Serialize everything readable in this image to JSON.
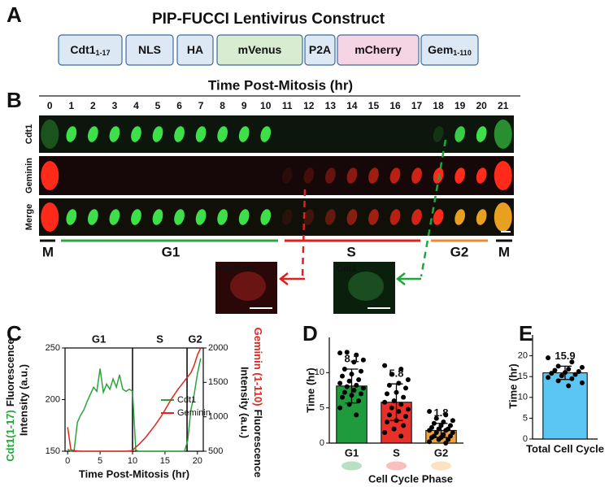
{
  "panel_labels": [
    "A",
    "B",
    "C",
    "D",
    "E"
  ],
  "construct": {
    "title": "PIP-FUCCI Lentivirus Construct",
    "segments": [
      {
        "name": "Cdt1",
        "sub": "1-17",
        "color": "#dde8f5"
      },
      {
        "name": "NLS",
        "color": "#dde8f5"
      },
      {
        "name": "HA",
        "color": "#dde8f5"
      },
      {
        "name": "mVenus",
        "color": "#d7ecd0"
      },
      {
        "name": "P2A",
        "color": "#dde8f5"
      },
      {
        "name": "mCherry",
        "color": "#f5d4e4"
      },
      {
        "name": "Gem",
        "sub": "1-110",
        "color": "#dde8f5"
      }
    ]
  },
  "timelapse": {
    "title": "Time Post-Mitosis (hr)",
    "times": [
      0,
      1,
      2,
      3,
      4,
      5,
      6,
      7,
      8,
      9,
      10,
      11,
      12,
      13,
      14,
      15,
      16,
      17,
      18,
      19,
      20,
      21
    ],
    "rows": [
      {
        "name": "Cdt1",
        "color": "#1fa83a"
      },
      {
        "name": "Geminin",
        "color": "#e0201e"
      },
      {
        "name": "Merge",
        "color": "#111111"
      }
    ],
    "phases": [
      {
        "name": "M",
        "color": "#111111"
      },
      {
        "name": "G1",
        "color": "#27a844"
      },
      {
        "name": "S",
        "color": "#e0201e"
      },
      {
        "name": "G2",
        "color": "#f08a30"
      },
      {
        "name": "M",
        "color": "#111111"
      }
    ],
    "insets": [
      {
        "name": "Geminin",
        "color": "#e0201e"
      },
      {
        "name": "Cdt1",
        "color": "#1fa83a"
      }
    ]
  },
  "chart_data": [
    {
      "type": "line",
      "xlabel": "Time Post-Mitosis (hr)",
      "ylabel_marker": "Cdt1(1-17)",
      "ylabel_rest": "Fluorescence",
      "ylabel_line2": "Intensity (a.u.)",
      "y2label_marker": "Geminin (1-110)",
      "y2label_rest": "Fluorescence",
      "y2label_line2": "Intensity (a.u.)",
      "phase_labels": [
        "G1",
        "S",
        "G2"
      ],
      "phase_bounds": [
        10,
        18.4
      ],
      "x": [
        0,
        0.5,
        1,
        1.5,
        2,
        2.5,
        3,
        3.5,
        4,
        4.5,
        5,
        5.5,
        6,
        6.5,
        7,
        7.5,
        8,
        8.5,
        9,
        9.5,
        10,
        10.5,
        11,
        11.5,
        12,
        12.5,
        13,
        13.5,
        14,
        14.5,
        15,
        15.5,
        16,
        16.5,
        17,
        17.5,
        18,
        18.5,
        19,
        19.5,
        20,
        20.5
      ],
      "series": [
        {
          "name": "Cdt1",
          "color": "#2aa43a",
          "values": [
            152,
            150,
            151,
            178,
            185,
            190,
            198,
            205,
            212,
            208,
            230,
            207,
            215,
            210,
            220,
            212,
            224,
            210,
            208,
            210,
            208,
            151,
            150,
            150,
            150,
            150,
            150,
            150,
            150,
            150,
            150,
            150,
            150,
            150,
            150,
            150,
            150,
            160,
            190,
            205,
            225,
            240
          ]
        },
        {
          "name": "Geminin",
          "color": "#e0261e",
          "axis": "y2",
          "values": [
            850,
            520,
            510,
            505,
            500,
            500,
            500,
            500,
            500,
            500,
            500,
            500,
            500,
            500,
            500,
            500,
            500,
            500,
            500,
            505,
            510,
            560,
            600,
            650,
            700,
            760,
            820,
            880,
            950,
            1020,
            1100,
            1180,
            1260,
            1330,
            1400,
            1460,
            1520,
            1580,
            1640,
            1750,
            1900,
            2000
          ]
        }
      ],
      "xlim": [
        -0.4,
        20.9
      ],
      "xticks": [
        0,
        5,
        10,
        15,
        20
      ],
      "ylim": [
        150,
        250
      ],
      "yticks": [
        150,
        200,
        250
      ],
      "y2lim": [
        500,
        2000
      ],
      "y2ticks": [
        500,
        1000,
        1500,
        2000
      ],
      "legend": "right"
    },
    {
      "type": "bar",
      "ylabel": "Time (hr)",
      "xlabel": "Cell Cycle Phase",
      "categories": [
        "G1",
        "S",
        "G2"
      ],
      "values": [
        8.1,
        5.8,
        1.8
      ],
      "errors": [
        2.4,
        2.6,
        1.0
      ],
      "colors": [
        "#1f9a3c",
        "#e8302a",
        "#f2a23a"
      ],
      "points": [
        [
          12.8,
          12.5,
          12.9,
          11.8,
          11.5,
          10.5,
          10.2,
          9.8,
          9.5,
          9.0,
          8.8,
          8.5,
          8.2,
          8.0,
          7.8,
          7.5,
          7.2,
          7.0,
          6.8,
          6.5,
          6.0,
          5.5,
          5.0,
          4.0
        ],
        [
          11.0,
          10.5,
          9.8,
          9.0,
          8.5,
          8.2,
          7.8,
          7.2,
          7.0,
          6.5,
          6.0,
          5.8,
          5.5,
          5.0,
          4.8,
          4.5,
          4.0,
          3.8,
          3.2,
          3.0,
          2.5,
          2.0,
          1.5,
          1.0
        ],
        [
          4.5,
          4.0,
          3.5,
          3.2,
          3.0,
          2.8,
          2.5,
          2.5,
          2.2,
          2.0,
          2.0,
          1.8,
          1.8,
          1.5,
          1.5,
          1.2,
          1.0,
          1.0,
          0.8,
          0.8,
          0.5,
          0.5,
          0.2,
          0.0
        ]
      ],
      "ylim": [
        0,
        15
      ],
      "yticks": [
        0,
        5,
        10
      ]
    },
    {
      "type": "bar",
      "ylabel": "Time (hr)",
      "categories": [
        "Total Cell Cycle"
      ],
      "values": [
        15.9
      ],
      "errors": [
        1.6
      ],
      "colors": [
        "#5cc6f2"
      ],
      "points": [
        [
          19.5,
          18.5,
          17.5,
          17.2,
          16.8,
          16.5,
          16.2,
          16.0,
          15.8,
          15.5,
          15.2,
          14.8,
          14.5,
          14.0,
          13.5,
          12.8
        ]
      ],
      "ylim": [
        0,
        25
      ],
      "yticks": [
        0,
        5,
        10,
        15,
        20
      ]
    }
  ]
}
